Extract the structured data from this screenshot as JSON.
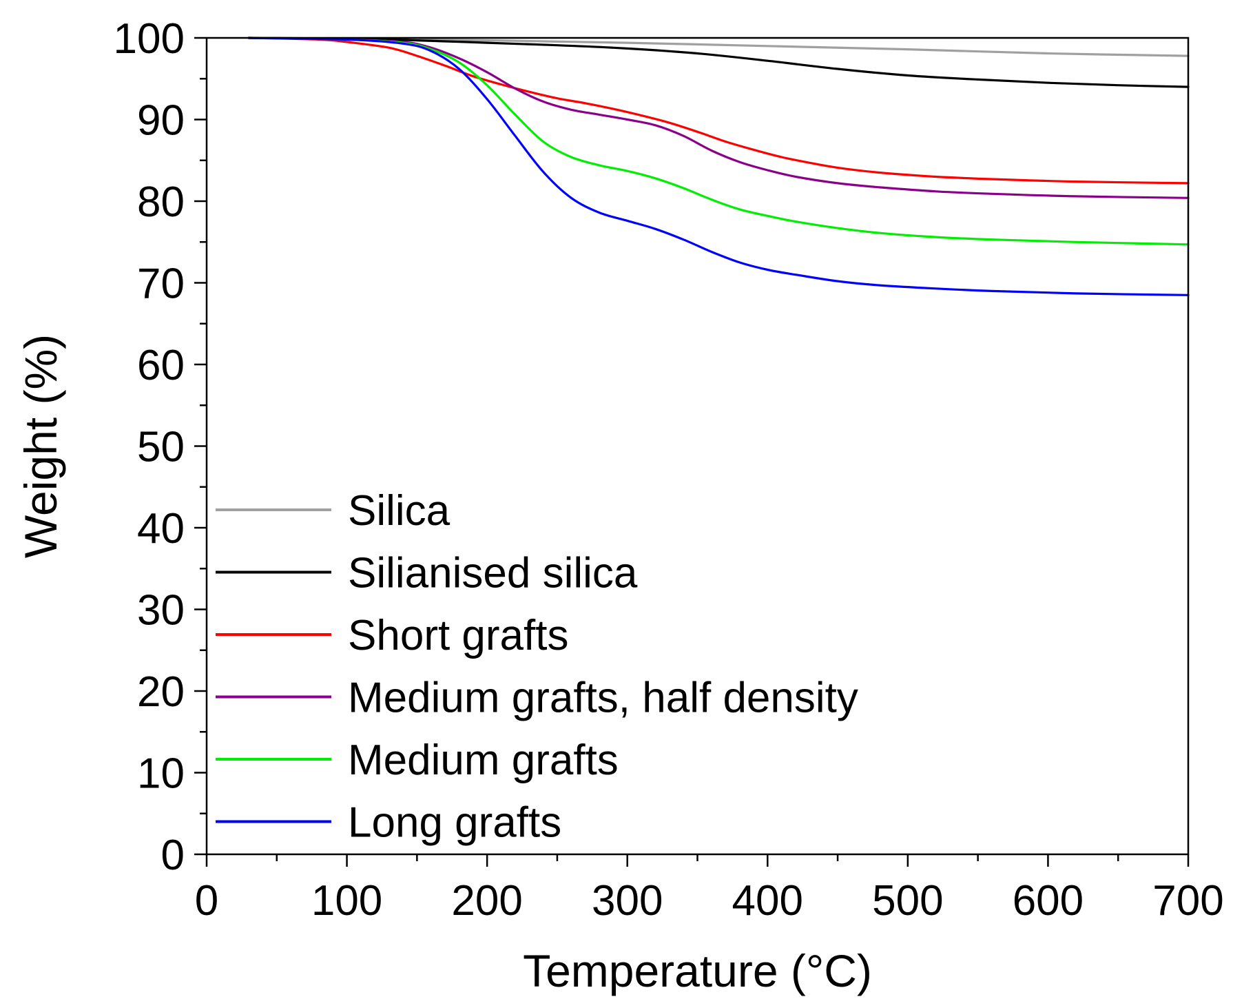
{
  "chart_data": {
    "type": "line",
    "title": "",
    "xlabel": "Temperature (°C)",
    "ylabel": "Weight (%)",
    "xlim": [
      0,
      700
    ],
    "ylim": [
      0,
      100
    ],
    "xticks": [
      0,
      100,
      200,
      300,
      400,
      500,
      600,
      700
    ],
    "yticks": [
      0,
      10,
      20,
      30,
      40,
      50,
      60,
      70,
      80,
      90,
      100
    ],
    "x_minor_step": 50,
    "y_minor_step": 5,
    "grid": false,
    "legend_position": "bottom-left",
    "series": [
      {
        "name": "Silica",
        "color": "#a0a0a0",
        "points": [
          [
            30,
            100
          ],
          [
            100,
            99.9
          ],
          [
            200,
            99.7
          ],
          [
            300,
            99.4
          ],
          [
            400,
            99.0
          ],
          [
            500,
            98.6
          ],
          [
            600,
            98.1
          ],
          [
            700,
            97.8
          ]
        ]
      },
      {
        "name": "Silianised silica",
        "color": "#000000",
        "points": [
          [
            30,
            100
          ],
          [
            100,
            99.9
          ],
          [
            150,
            99.7
          ],
          [
            200,
            99.4
          ],
          [
            250,
            99.1
          ],
          [
            300,
            98.7
          ],
          [
            350,
            98.1
          ],
          [
            400,
            97.2
          ],
          [
            450,
            96.2
          ],
          [
            500,
            95.4
          ],
          [
            550,
            94.9
          ],
          [
            600,
            94.5
          ],
          [
            650,
            94.2
          ],
          [
            700,
            94.0
          ]
        ]
      },
      {
        "name": "Short grafts",
        "color": "#ff0000",
        "points": [
          [
            30,
            100
          ],
          [
            80,
            99.8
          ],
          [
            100,
            99.5
          ],
          [
            130,
            98.8
          ],
          [
            150,
            97.8
          ],
          [
            170,
            96.6
          ],
          [
            190,
            95.3
          ],
          [
            210,
            94.3
          ],
          [
            230,
            93.4
          ],
          [
            250,
            92.6
          ],
          [
            270,
            92.0
          ],
          [
            290,
            91.3
          ],
          [
            310,
            90.5
          ],
          [
            330,
            89.6
          ],
          [
            350,
            88.5
          ],
          [
            370,
            87.3
          ],
          [
            390,
            86.3
          ],
          [
            410,
            85.4
          ],
          [
            430,
            84.7
          ],
          [
            450,
            84.1
          ],
          [
            480,
            83.5
          ],
          [
            520,
            83.0
          ],
          [
            560,
            82.7
          ],
          [
            620,
            82.4
          ],
          [
            700,
            82.2
          ]
        ]
      },
      {
        "name": "Medium grafts, half density",
        "color": "#8b008b",
        "points": [
          [
            30,
            100
          ],
          [
            100,
            99.8
          ],
          [
            140,
            99.5
          ],
          [
            160,
            98.8
          ],
          [
            180,
            97.5
          ],
          [
            200,
            95.8
          ],
          [
            220,
            93.8
          ],
          [
            240,
            92.2
          ],
          [
            260,
            91.2
          ],
          [
            280,
            90.6
          ],
          [
            300,
            90.0
          ],
          [
            320,
            89.3
          ],
          [
            340,
            88.0
          ],
          [
            360,
            86.2
          ],
          [
            380,
            84.8
          ],
          [
            400,
            83.8
          ],
          [
            420,
            83.0
          ],
          [
            450,
            82.2
          ],
          [
            480,
            81.7
          ],
          [
            520,
            81.2
          ],
          [
            560,
            80.9
          ],
          [
            620,
            80.6
          ],
          [
            700,
            80.4
          ]
        ]
      },
      {
        "name": "Medium grafts",
        "color": "#00ee00",
        "points": [
          [
            30,
            100
          ],
          [
            100,
            99.8
          ],
          [
            140,
            99.4
          ],
          [
            160,
            98.6
          ],
          [
            180,
            97.0
          ],
          [
            200,
            94.2
          ],
          [
            220,
            90.6
          ],
          [
            240,
            87.3
          ],
          [
            260,
            85.4
          ],
          [
            280,
            84.4
          ],
          [
            300,
            83.7
          ],
          [
            320,
            82.8
          ],
          [
            340,
            81.6
          ],
          [
            360,
            80.2
          ],
          [
            380,
            79.0
          ],
          [
            400,
            78.2
          ],
          [
            420,
            77.5
          ],
          [
            450,
            76.7
          ],
          [
            480,
            76.1
          ],
          [
            520,
            75.6
          ],
          [
            560,
            75.3
          ],
          [
            620,
            75.0
          ],
          [
            700,
            74.7
          ]
        ]
      },
      {
        "name": "Long grafts",
        "color": "#0000ff",
        "points": [
          [
            30,
            100
          ],
          [
            100,
            99.8
          ],
          [
            140,
            99.3
          ],
          [
            160,
            98.4
          ],
          [
            180,
            96.2
          ],
          [
            200,
            92.5
          ],
          [
            220,
            88.0
          ],
          [
            240,
            83.6
          ],
          [
            260,
            80.4
          ],
          [
            280,
            78.6
          ],
          [
            300,
            77.6
          ],
          [
            320,
            76.6
          ],
          [
            340,
            75.3
          ],
          [
            360,
            73.8
          ],
          [
            380,
            72.5
          ],
          [
            400,
            71.6
          ],
          [
            420,
            71.0
          ],
          [
            450,
            70.2
          ],
          [
            480,
            69.7
          ],
          [
            520,
            69.3
          ],
          [
            560,
            69.0
          ],
          [
            620,
            68.7
          ],
          [
            700,
            68.5
          ]
        ]
      }
    ]
  }
}
